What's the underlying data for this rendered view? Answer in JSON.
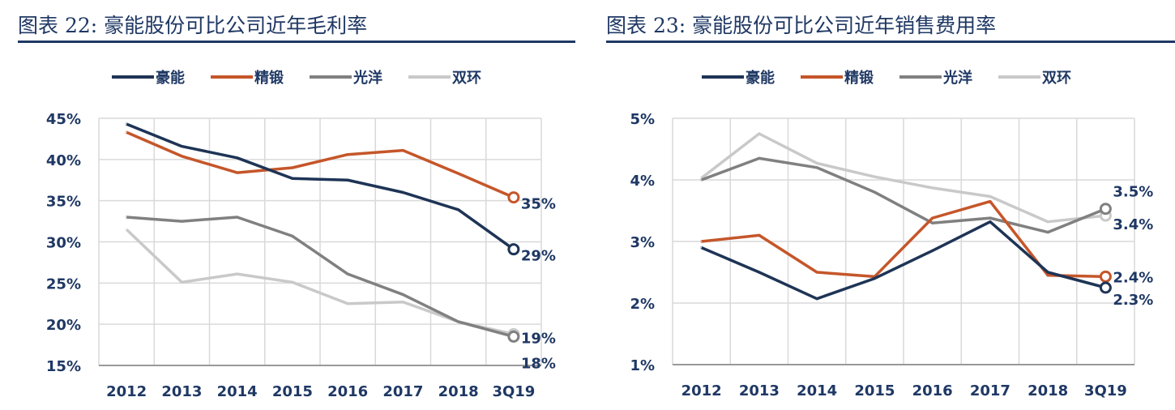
{
  "colors": {
    "豪能": "#1e3456",
    "精锻": "#c5562a",
    "光洋": "#808080",
    "双环": "#c9c9c9"
  },
  "chart_data": [
    {
      "type": "line",
      "title": "图表 22:  豪能股份可比公司近年毛利率",
      "categories": [
        "2012",
        "2013",
        "2014",
        "2015",
        "2016",
        "2017",
        "2018",
        "3Q19"
      ],
      "ylim": [
        15,
        45
      ],
      "yticks": [
        "15%",
        "20%",
        "25%",
        "30%",
        "35%",
        "40%",
        "45%"
      ],
      "ystep": 5,
      "grid": true,
      "legend": "top",
      "series": [
        {
          "name": "豪能",
          "values": [
            44.3,
            41.6,
            40.2,
            37.7,
            37.5,
            36.0,
            33.9,
            29.1
          ],
          "end_label": "29%"
        },
        {
          "name": "精锻",
          "values": [
            43.3,
            40.4,
            38.4,
            39.0,
            40.6,
            41.1,
            38.3,
            35.4
          ],
          "end_label": "35%"
        },
        {
          "name": "光洋",
          "values": [
            33.0,
            32.5,
            33.0,
            30.7,
            26.1,
            23.6,
            20.3,
            18.5
          ],
          "end_label": "18%"
        },
        {
          "name": "双环",
          "values": [
            31.5,
            25.1,
            26.1,
            25.1,
            22.5,
            22.7,
            20.3,
            18.8
          ],
          "end_label": "19%"
        }
      ]
    },
    {
      "type": "line",
      "title": "图表 23:  豪能股份可比公司近年销售费用率",
      "categories": [
        "2012",
        "2013",
        "2014",
        "2015",
        "2016",
        "2017",
        "2018",
        "3Q19"
      ],
      "ylim": [
        1,
        5
      ],
      "yticks": [
        "1%",
        "2%",
        "3%",
        "4%",
        "5%"
      ],
      "ystep": 1,
      "grid": true,
      "legend": "top",
      "series": [
        {
          "name": "豪能",
          "values": [
            2.9,
            2.5,
            2.07,
            2.4,
            2.85,
            3.32,
            2.5,
            2.25
          ],
          "end_label": "2.3%"
        },
        {
          "name": "精锻",
          "values": [
            3.0,
            3.1,
            2.5,
            2.43,
            3.38,
            3.65,
            2.45,
            2.43
          ],
          "end_label": "2.4%"
        },
        {
          "name": "光洋",
          "values": [
            4.0,
            4.35,
            4.2,
            3.8,
            3.3,
            3.38,
            3.15,
            3.53
          ],
          "end_label": "3.5%"
        },
        {
          "name": "双环",
          "values": [
            4.03,
            4.75,
            4.27,
            4.05,
            3.87,
            3.73,
            3.32,
            3.42
          ],
          "end_label": "3.4%"
        }
      ]
    }
  ]
}
